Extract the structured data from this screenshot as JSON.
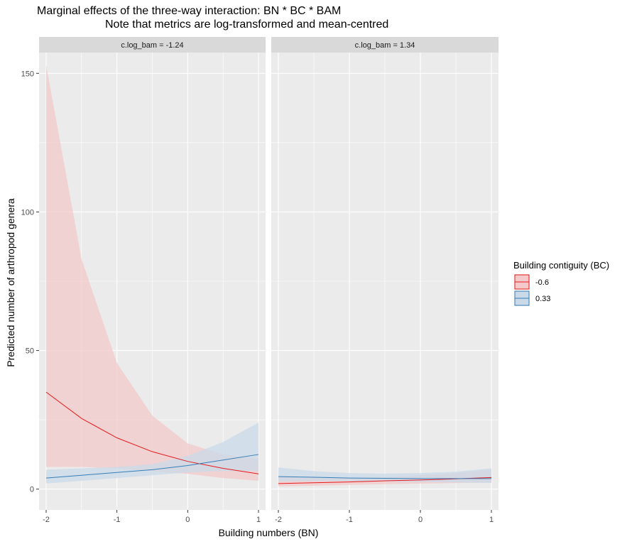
{
  "title": {
    "line1": "Marginal effects of the three-way interaction: BN * BC * BAM",
    "line2": "Note that metrics are log-transformed and mean-centred"
  },
  "axes": {
    "xlabel": "Building numbers (BN)",
    "ylabel": "Predicted number of arthropod genera"
  },
  "legend": {
    "title": "Building contiguity (BC)",
    "entries": [
      {
        "label": "-0.6",
        "line_color": "#e41a1c",
        "fill_color": "#f3c9ca"
      },
      {
        "label": "0.33",
        "line_color": "#377eb8",
        "fill_color": "#c9d9e8"
      }
    ],
    "placement": "right"
  },
  "colors": {
    "panel_bg": "#ebebeb",
    "grid": "#ffffff",
    "strip_bg": "#d9d9d9"
  },
  "chart_data": {
    "type": "line",
    "xlim": [
      -2.1,
      1.1
    ],
    "ylim": [
      -7.5,
      157.5
    ],
    "xticks": [
      -2,
      -1,
      0,
      1
    ],
    "xtick_labels": [
      "-2",
      "-1",
      "0",
      "1"
    ],
    "yticks": [
      0,
      50,
      100,
      150
    ],
    "ytick_labels": [
      "0",
      "50",
      "100",
      "150"
    ],
    "grid": true,
    "x": [
      -2,
      -1.5,
      -1,
      -0.5,
      0,
      0.5,
      1
    ],
    "panels": [
      {
        "strip": "c.log_bam = -1.24",
        "series": [
          {
            "name": "-0.6",
            "y": [
              35,
              25.5,
              18.5,
              13.5,
              10,
              7.5,
              5.5
            ],
            "lower": [
              8,
              8,
              7.5,
              6.5,
              5.5,
              4,
              3
            ],
            "upper": [
              153,
              83,
              45.5,
              26.5,
              16.5,
              12.5,
              11
            ]
          },
          {
            "name": "0.33",
            "y": [
              4,
              5,
              6,
              7,
              8.5,
              10.5,
              12.5
            ],
            "lower": [
              2,
              3,
              4,
              5,
              6,
              6.5,
              6.5
            ],
            "upper": [
              7,
              7.5,
              8,
              9,
              12,
              17,
              24
            ]
          }
        ]
      },
      {
        "strip": "c.log_bam = 1.34",
        "series": [
          {
            "name": "-0.6",
            "y": [
              2,
              2.3,
              2.6,
              3,
              3.3,
              3.7,
              4.2
            ],
            "lower": [
              1,
              1.2,
              1.5,
              1.8,
              2,
              2.2,
              2.4
            ],
            "upper": [
              4.5,
              4.2,
              4,
              4.3,
              5,
              5.8,
              7
            ]
          },
          {
            "name": "0.33",
            "y": [
              4.5,
              4.3,
              4,
              3.9,
              3.8,
              3.8,
              3.8
            ],
            "lower": [
              2.8,
              2.9,
              2.9,
              2.8,
              2.6,
              2.4,
              2.2
            ],
            "upper": [
              7.8,
              6.5,
              5.8,
              5.6,
              5.8,
              6.3,
              7.5
            ]
          }
        ]
      }
    ]
  }
}
